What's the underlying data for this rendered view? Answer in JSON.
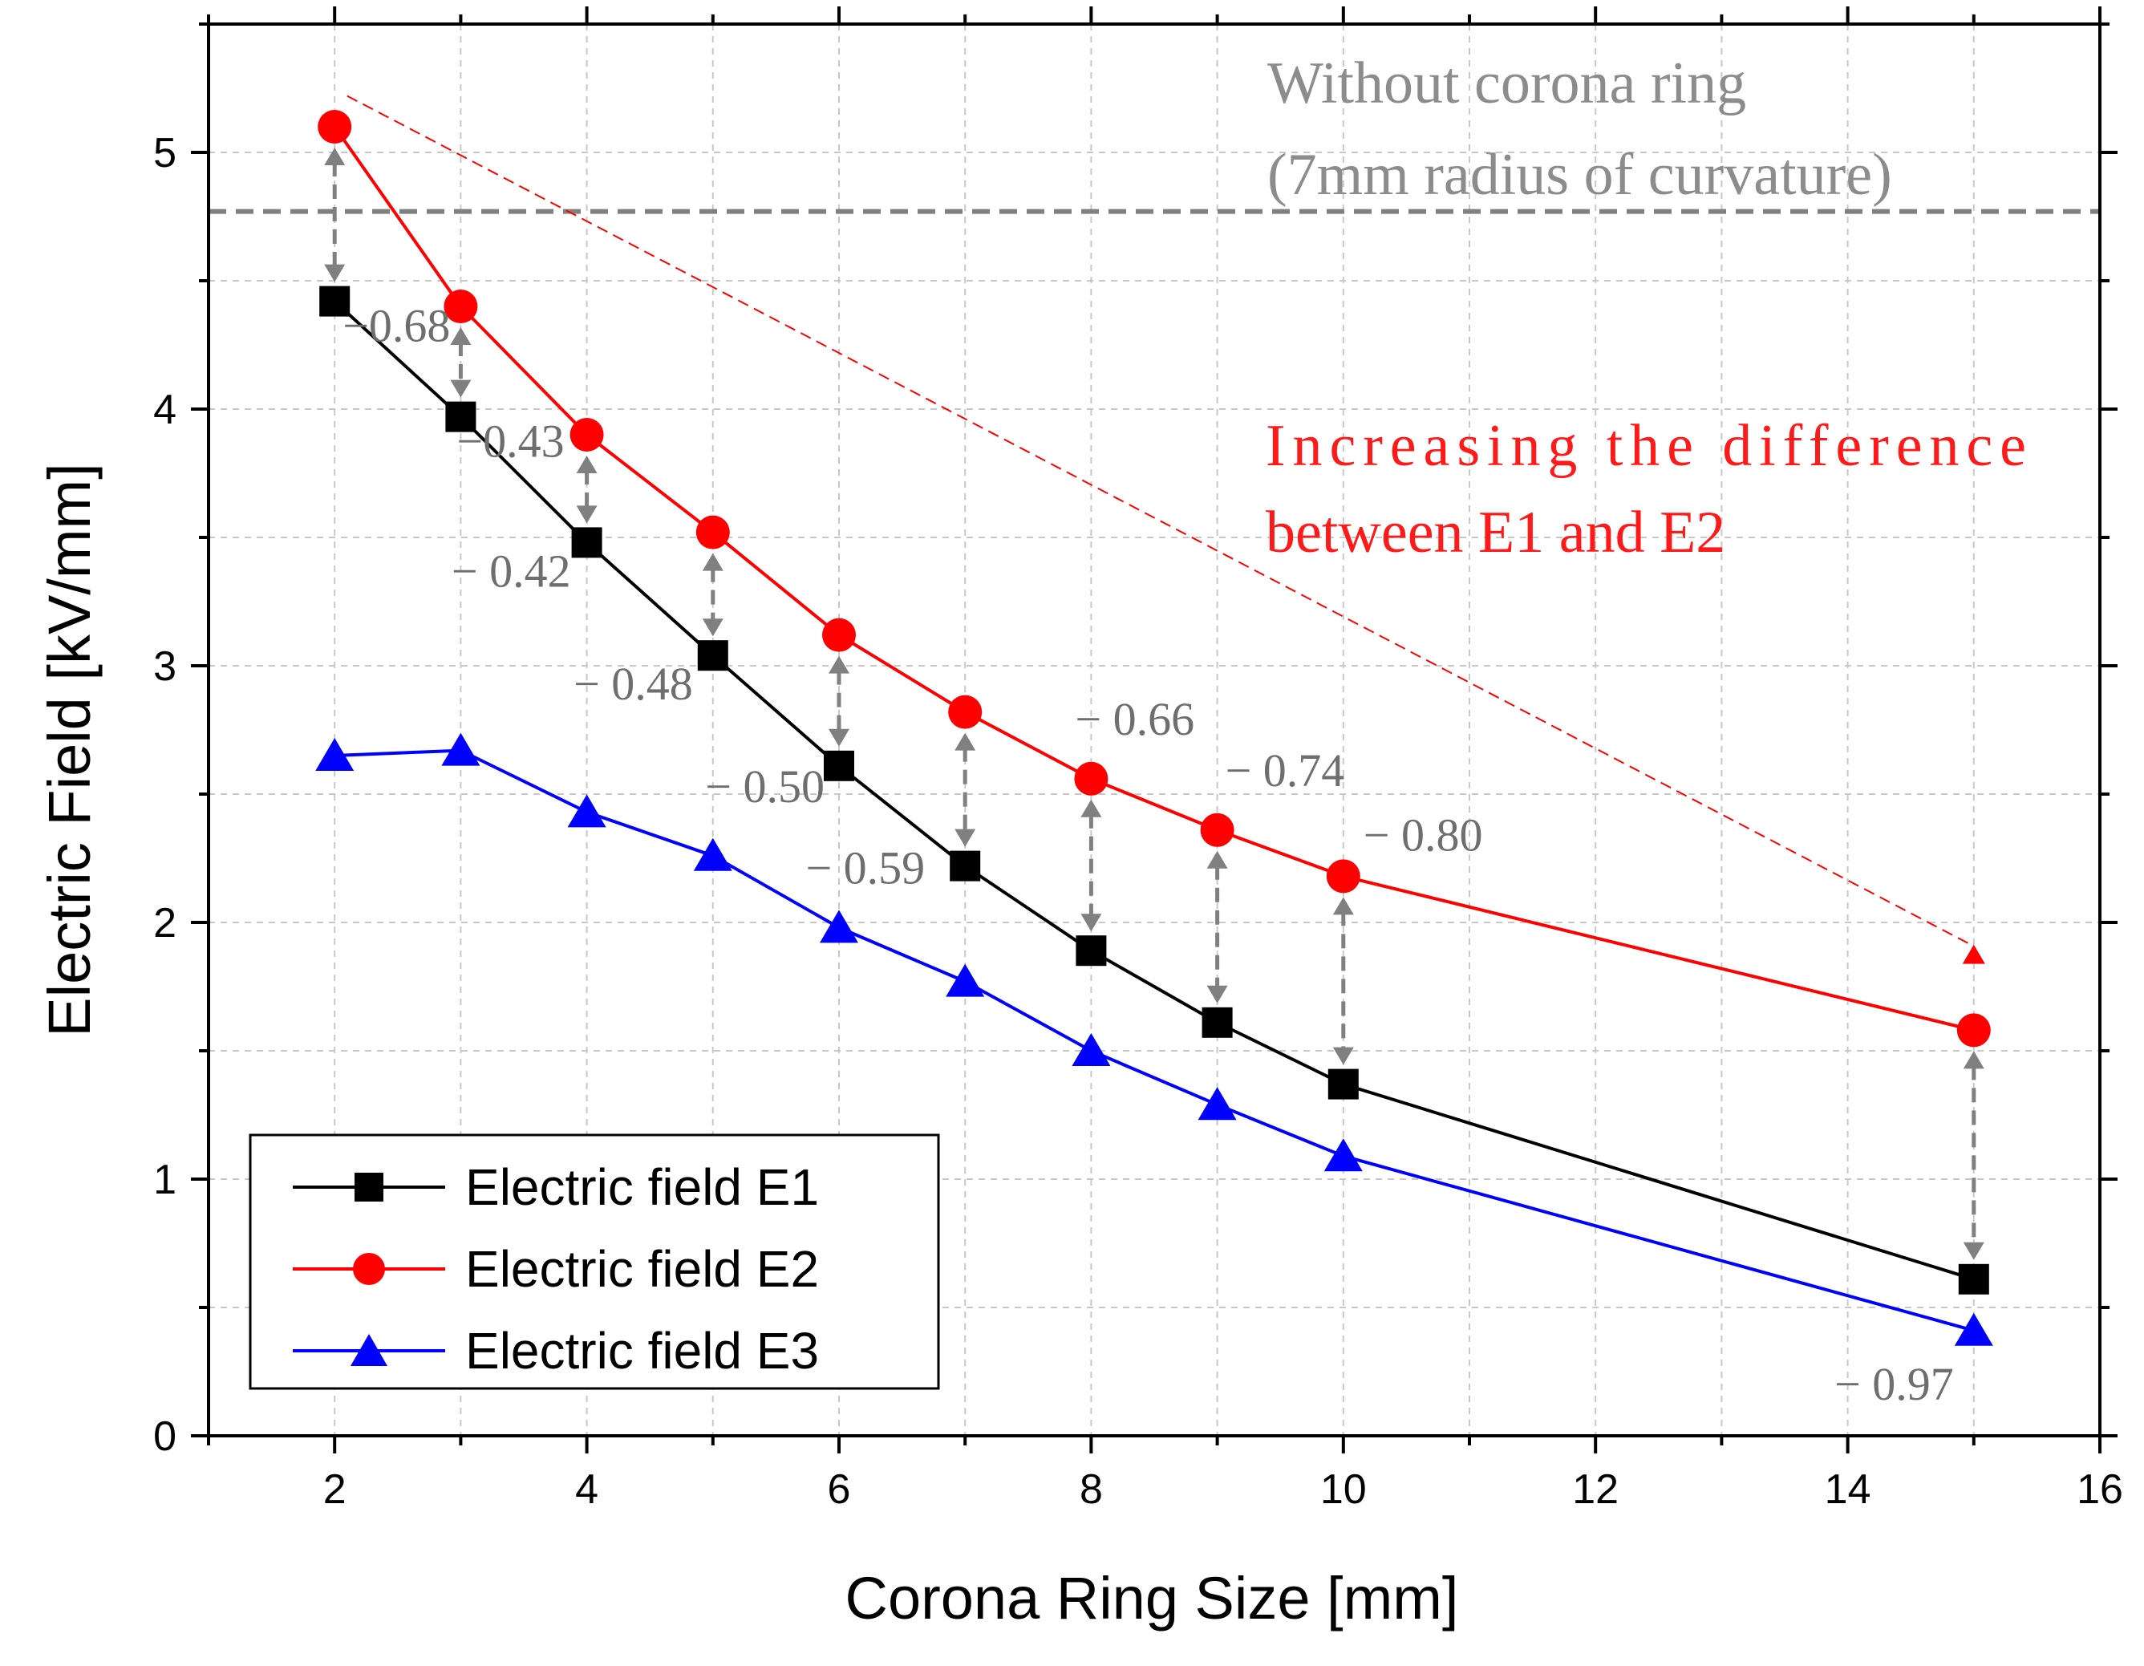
{
  "chart_data": {
    "type": "line",
    "xlabel": "Corona Ring Size [mm]",
    "ylabel": "Electric Field [kV/mm]",
    "xlim": [
      1,
      16
    ],
    "ylim": [
      0,
      5.5
    ],
    "x_ticks": [
      2,
      4,
      6,
      8,
      10,
      12,
      14,
      16
    ],
    "y_ticks": [
      0,
      1,
      2,
      3,
      4,
      5
    ],
    "x_tick_labels": [
      "2",
      "4",
      "6",
      "8",
      "10",
      "12",
      "14",
      "16"
    ],
    "y_tick_labels": [
      "0",
      "1",
      "2",
      "3",
      "4",
      "5"
    ],
    "grid": true,
    "legend_position": "bottom-left",
    "x": [
      2,
      3,
      4,
      5,
      6,
      7,
      8,
      9,
      10,
      15
    ],
    "series": [
      {
        "name": "Electric field E1",
        "marker": "square",
        "color": "#000000",
        "values": [
          4.42,
          3.97,
          3.48,
          3.04,
          2.61,
          2.22,
          1.89,
          1.61,
          1.37,
          0.61
        ]
      },
      {
        "name": "Electric field E2",
        "marker": "circle",
        "color": "#ff0000",
        "values": [
          5.1,
          4.4,
          3.9,
          3.52,
          3.12,
          2.82,
          2.56,
          2.36,
          2.18,
          1.58
        ]
      },
      {
        "name": "Electric field E3",
        "marker": "triangle",
        "color": "#0000ff",
        "values": [
          2.65,
          2.67,
          2.43,
          2.26,
          1.98,
          1.77,
          1.5,
          1.29,
          1.09,
          0.41
        ]
      }
    ],
    "reference_line": {
      "y": 4.77,
      "color": "#808080",
      "label_line1": "Without corona ring",
      "label_line2": "(7mm radius of curvature)"
    },
    "differences": [
      {
        "x": 2,
        "label": "−0.68"
      },
      {
        "x": 3,
        "label": "−0.43"
      },
      {
        "x": 4,
        "label": "− 0.42"
      },
      {
        "x": 5,
        "label": "− 0.48"
      },
      {
        "x": 6,
        "label": "− 0.50"
      },
      {
        "x": 7,
        "label": "− 0.59"
      },
      {
        "x": 8,
        "label": "− 0.66"
      },
      {
        "x": 9,
        "label": "− 0.74"
      },
      {
        "x": 10,
        "label": "− 0.80"
      },
      {
        "x": 15,
        "label": "− 0.97"
      }
    ],
    "trend_annotation": {
      "line1": "Increasing the difference",
      "line2": "between E1 and E2",
      "color": "#ff0000",
      "from": {
        "x": 2.1,
        "y": 5.22
      },
      "to": {
        "x": 15,
        "y": 1.87
      }
    }
  }
}
